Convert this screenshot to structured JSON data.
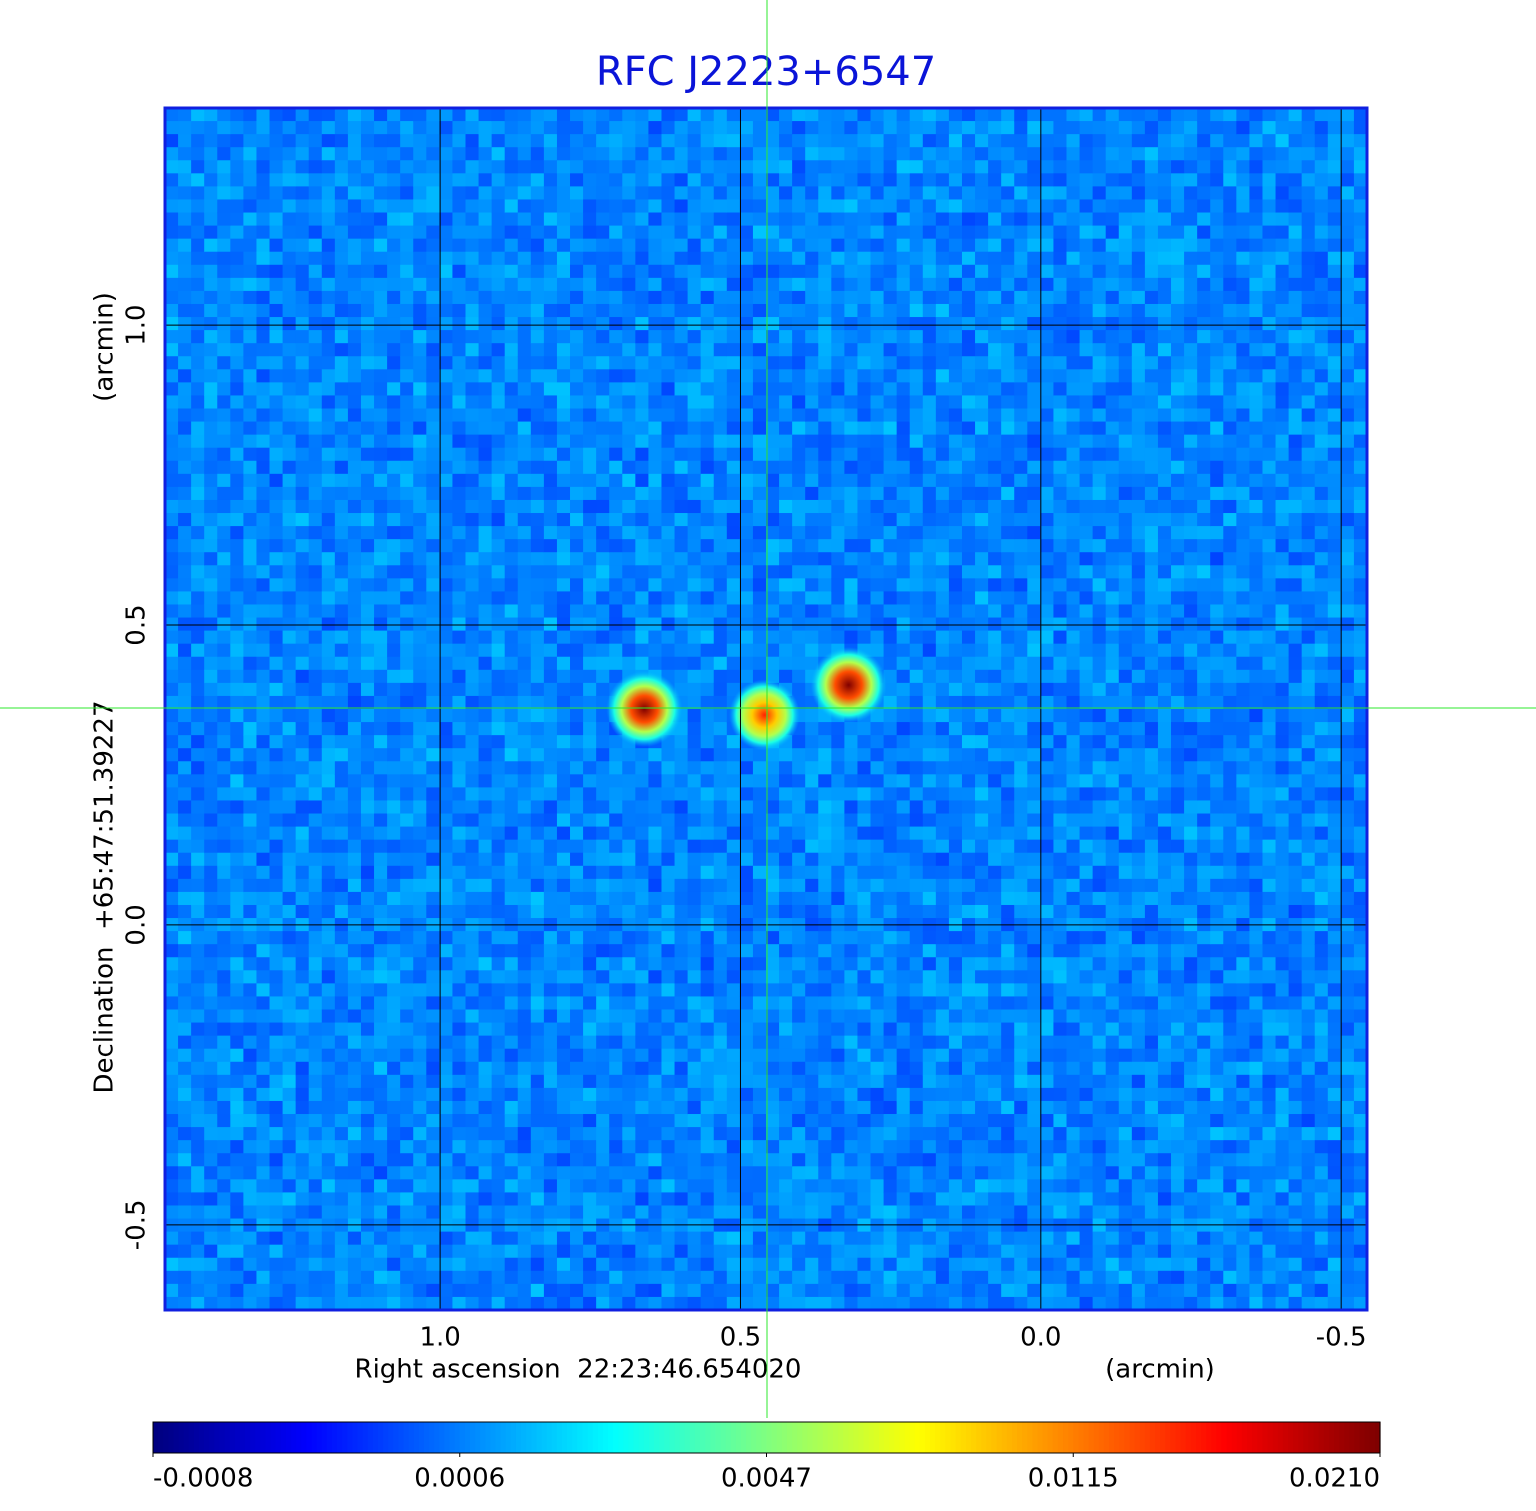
{
  "chart_data": {
    "type": "heatmap",
    "title": "RFC J2223+6547",
    "x_label": "Right ascension  22:23:46.654020",
    "x_unit": "(arcmin)",
    "y_label": "Declination  +65:47:51.39227",
    "y_unit": "(arcmin)",
    "xlim": [
      1.458,
      -0.543
    ],
    "ylim": [
      -0.642,
      1.362
    ],
    "xticks": [
      {
        "value": 1,
        "label": "1.0"
      },
      0.5,
      {
        "value": 0,
        "label": "0.0"
      },
      -0.5
    ],
    "yticks": [
      {
        "value": 1,
        "label": "1.0"
      },
      0.5,
      {
        "value": 0,
        "label": "0.0"
      },
      -0.5
    ],
    "grid": true,
    "sources": {
      "x": [
        0.66,
        0.46,
        0.32
      ],
      "y": [
        0.36,
        0.35,
        0.4
      ],
      "values": [
        0.021,
        0.015,
        0.021
      ]
    },
    "clim": [
      -0.0008,
      0.021
    ],
    "cticks": [
      -0.0008,
      0.0006,
      0.0047,
      0.0115,
      {
        "value": 0.021,
        "label": "0.0210"
      }
    ]
  }
}
